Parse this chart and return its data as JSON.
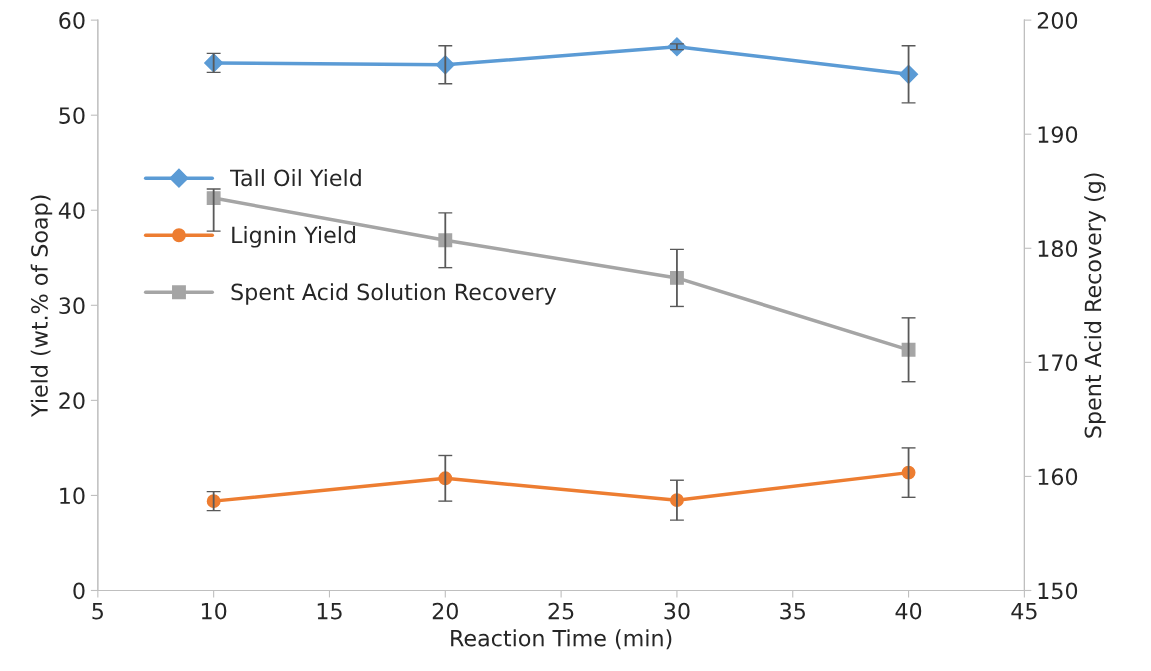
{
  "chart_data": {
    "type": "line",
    "xlabel": "Reaction Time (min)",
    "ylabel": "Yield (wt.% of Soap)",
    "y2label": "Spent Acid Recovery (g)",
    "x": [
      10,
      20,
      30,
      40
    ],
    "series": [
      {
        "name": "Tall Oil Yield",
        "color": "#5b9bd5",
        "marker": "diamond",
        "values": [
          55.5,
          55.3,
          57.2,
          54.3
        ],
        "errors": [
          1,
          2,
          0.3,
          3
        ]
      },
      {
        "name": "Lignin Yield",
        "color": "#ed7d31",
        "marker": "circle",
        "values": [
          9.4,
          11.8,
          9.5,
          12.4
        ],
        "errors": [
          1,
          2.4,
          2.1,
          2.6
        ]
      },
      {
        "name": "Spent Acid Solution Recovery",
        "color": "#a5a5a5",
        "marker": "square",
        "axis": "y2",
        "values": [
          184.4,
          180.7,
          177.4,
          171.1
        ],
        "errors": [
          [
            181.5,
            185.2
          ],
          2.4,
          2.5,
          2.8
        ]
      }
    ],
    "xlim": [
      5,
      45
    ],
    "xticks": [
      5,
      10,
      15,
      20,
      25,
      30,
      35,
      40,
      45
    ],
    "ylim": [
      0,
      60
    ],
    "yticks": [
      0,
      10,
      20,
      30,
      40,
      50,
      60
    ],
    "y2lim": [
      150,
      200
    ],
    "y2ticks": [
      150,
      160,
      170,
      180,
      190,
      200
    ],
    "grid": false,
    "legend": "left"
  }
}
